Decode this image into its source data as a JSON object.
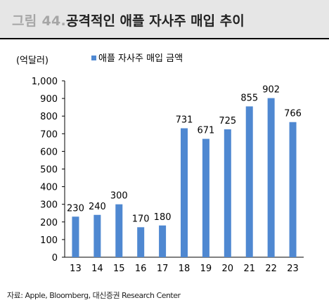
{
  "header": {
    "figure_label": "그림 44.",
    "title": "공격적인 애플 자사주 매입 추이"
  },
  "chart_data": {
    "type": "bar",
    "ylabel": "(억달러)",
    "categories": [
      "13",
      "14",
      "15",
      "16",
      "17",
      "18",
      "19",
      "20",
      "21",
      "22",
      "23"
    ],
    "series": [
      {
        "name": "애플 자사주 매입 금액",
        "values": [
          230,
          240,
          300,
          170,
          180,
          731,
          671,
          725,
          855,
          902,
          766
        ]
      }
    ],
    "ylim": [
      0,
      1000
    ],
    "yticks": [
      0,
      100,
      200,
      300,
      400,
      500,
      600,
      700,
      800,
      900,
      1000
    ],
    "ytick_labels": [
      "0",
      "100",
      "200",
      "300",
      "400",
      "500",
      "600",
      "700",
      "800",
      "900",
      "1,000"
    ],
    "data_labels": [
      "230",
      "240",
      "300",
      "170",
      "180",
      "731",
      "671",
      "725",
      "855",
      "902",
      "766"
    ],
    "grid": false,
    "legend": "top",
    "bar_color": "#4f88d1"
  },
  "footer": {
    "source": "자료: Apple, Bloomberg, 대신증권 Research Center"
  }
}
